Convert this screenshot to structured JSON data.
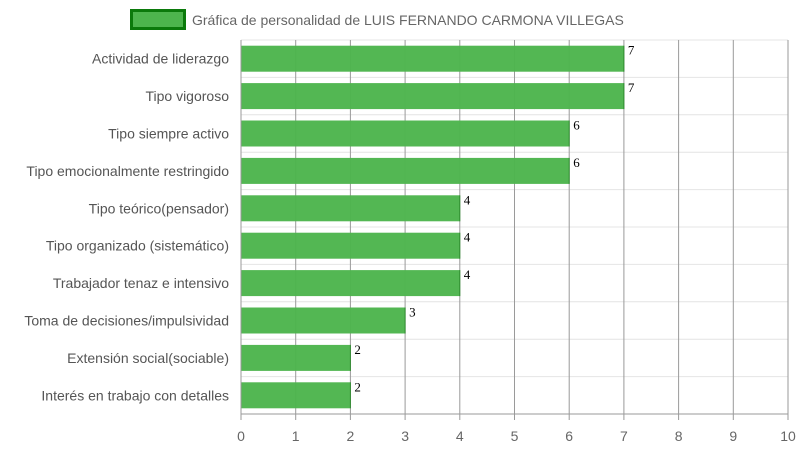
{
  "chart_data": {
    "type": "bar",
    "orientation": "horizontal",
    "legend_label": "Gráfica de personalidad de LUIS FERNANDO CARMONA VILLEGAS",
    "legend_position": "top",
    "categories": [
      "Actividad de liderazgo",
      "Tipo vigoroso",
      "Tipo siempre activo",
      "Tipo emocionalmente restringido",
      "Tipo teórico(pensador)",
      "Tipo organizado (sistemático)",
      "Trabajador tenaz e intensivo",
      "Toma de decisiones/impulsividad",
      "Extensión social(sociable)",
      "Interés en trabajo con detalles"
    ],
    "values": [
      7,
      7,
      6,
      6,
      4,
      4,
      4,
      3,
      2,
      2
    ],
    "xlim": [
      0,
      10
    ],
    "x_ticks": [
      "0",
      "1",
      "2",
      "3",
      "4",
      "5",
      "6",
      "7",
      "8",
      "9",
      "10"
    ],
    "grid": true,
    "bar_color": "#4db54d",
    "legend_border_color": "#0b7a0b"
  }
}
